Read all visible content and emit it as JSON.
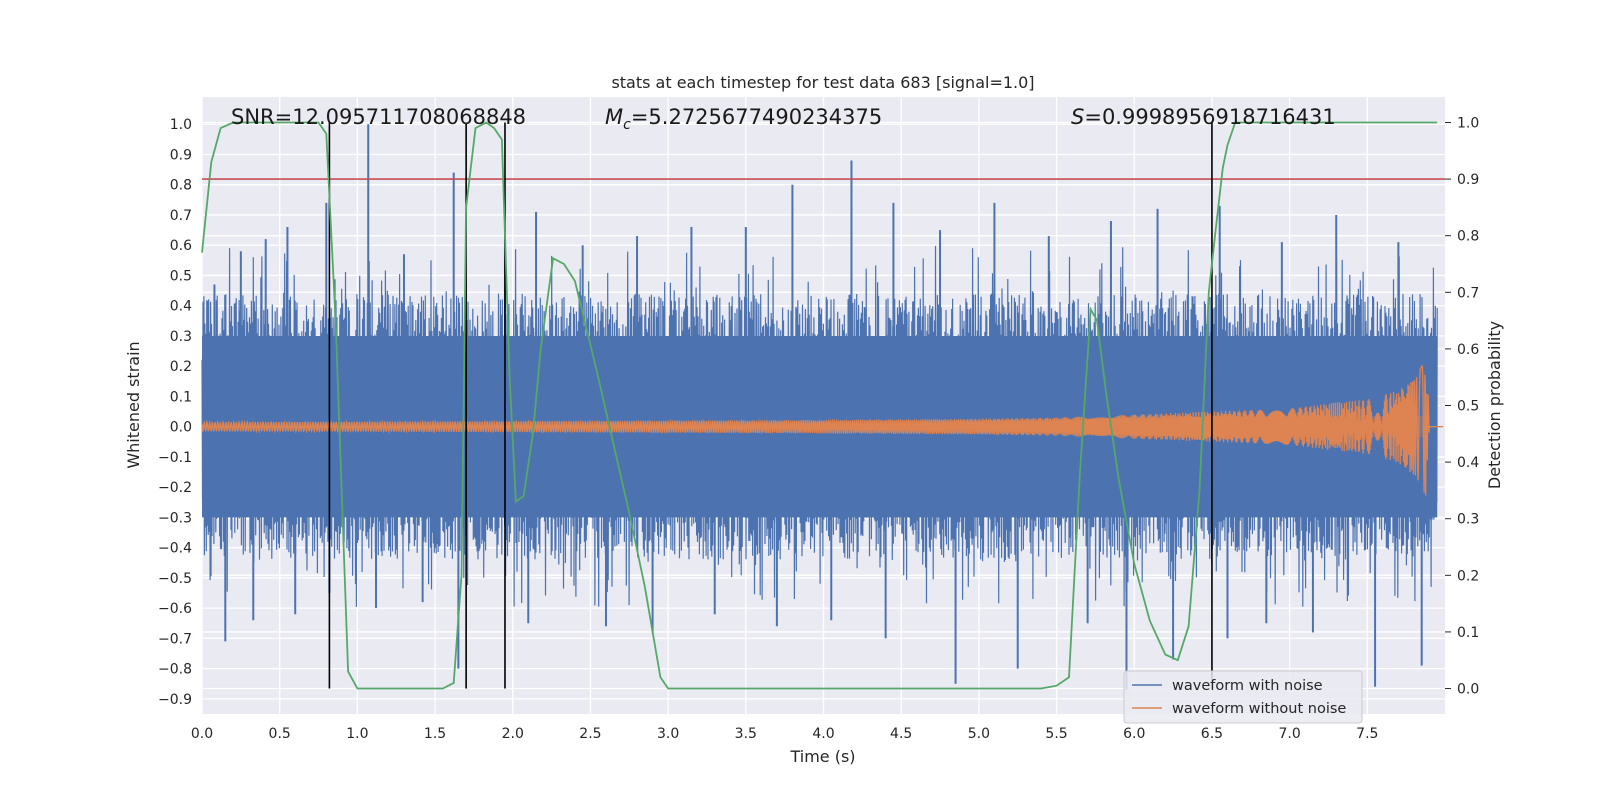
{
  "chart_data": {
    "type": "line",
    "title": "stats at each timestep for test data 683 [signal=1.0]",
    "xlabel": "Time (s)",
    "ylabel": "Whitened strain",
    "y2label": "Detection probability",
    "xlim": [
      0.0,
      8.0
    ],
    "ylim": [
      -0.95,
      1.09
    ],
    "y2lim": [
      -0.045,
      1.045
    ],
    "x_ticks": [
      "0.0",
      "0.5",
      "1.0",
      "1.5",
      "2.0",
      "2.5",
      "3.0",
      "3.5",
      "4.0",
      "4.5",
      "5.0",
      "5.5",
      "6.0",
      "6.5",
      "7.0",
      "7.5"
    ],
    "y_ticks": [
      "1.0",
      "0.9",
      "0.8",
      "0.7",
      "0.6",
      "0.5",
      "0.4",
      "0.3",
      "0.2",
      "0.1",
      "0.0",
      "−0.1",
      "−0.2",
      "−0.3",
      "−0.4",
      "−0.5",
      "−0.6",
      "−0.7",
      "−0.8",
      "−0.9"
    ],
    "y2_ticks": [
      "1.0",
      "0.9",
      "0.8",
      "0.7",
      "0.6",
      "0.5",
      "0.4",
      "0.3",
      "0.2",
      "0.1",
      "0.0"
    ],
    "grid": true,
    "legend_position": "lower-right",
    "annotations": {
      "snr": "SNR=12.095711708068848",
      "mc_symbol": "M",
      "mc_sub": "c",
      "mc_value": "=5.2725677490234375",
      "s_symbol": "S",
      "s_value": "=0.9998956918716431"
    },
    "series": [
      {
        "name": "waveform with noise",
        "color": "#4c72b0",
        "description_values": "noise band approx ±0.35, spikes to ±0.85",
        "peaks_x": [
          0.08,
          0.25,
          0.41,
          0.55,
          0.8,
          1.07,
          1.3,
          1.62,
          1.95,
          2.15,
          2.45,
          2.8,
          3.15,
          3.5,
          3.8,
          4.18,
          4.45,
          4.75,
          5.1,
          5.45,
          5.85,
          6.15,
          6.55,
          6.95,
          7.3,
          7.7
        ],
        "peaks_y": [
          0.47,
          0.58,
          0.62,
          0.66,
          0.74,
          1.0,
          0.57,
          0.84,
          0.62,
          0.71,
          0.6,
          0.63,
          0.66,
          0.66,
          0.8,
          0.88,
          0.74,
          0.65,
          0.74,
          0.63,
          0.68,
          0.72,
          0.73,
          0.61,
          0.7,
          0.61
        ],
        "troughs_x": [
          0.15,
          0.33,
          0.6,
          0.82,
          1.12,
          1.42,
          1.65,
          2.1,
          2.6,
          2.9,
          3.3,
          3.7,
          4.05,
          4.4,
          4.85,
          5.25,
          5.7,
          5.95,
          6.25,
          6.6,
          6.85,
          7.15,
          7.55,
          7.85
        ],
        "troughs_y": [
          -0.71,
          -0.64,
          -0.62,
          -0.55,
          -0.6,
          -0.58,
          -0.8,
          -0.65,
          -0.66,
          -0.68,
          -0.62,
          -0.66,
          -0.64,
          -0.7,
          -0.85,
          -0.8,
          -0.65,
          -0.87,
          -0.77,
          -0.7,
          -0.65,
          -0.68,
          -0.86,
          -0.79
        ]
      },
      {
        "name": "waveform without noise",
        "color": "#dd8452",
        "x": [
          0.0,
          1.0,
          2.0,
          3.0,
          4.0,
          5.0,
          5.5,
          6.0,
          6.5,
          7.0,
          7.3,
          7.5,
          7.7,
          7.8,
          7.85,
          7.88,
          7.9
        ],
        "amplitude": [
          0.015,
          0.016,
          0.018,
          0.02,
          0.022,
          0.026,
          0.03,
          0.04,
          0.05,
          0.06,
          0.08,
          0.09,
          0.12,
          0.16,
          0.2,
          0.24,
          0.0
        ]
      },
      {
        "name": "detection probability",
        "color": "#55a868",
        "axis": "right",
        "x": [
          0.0,
          0.06,
          0.12,
          0.2,
          0.35,
          0.5,
          0.65,
          0.75,
          0.8,
          0.86,
          0.94,
          1.0,
          1.2,
          1.4,
          1.55,
          1.62,
          1.67,
          1.7,
          1.76,
          1.83,
          1.88,
          1.93,
          1.98,
          2.02,
          2.07,
          2.13,
          2.18,
          2.26,
          2.33,
          2.4,
          2.48,
          2.55,
          2.65,
          2.75,
          2.85,
          2.95,
          3.0,
          3.2,
          3.5,
          4.0,
          4.5,
          5.0,
          5.4,
          5.5,
          5.58,
          5.65,
          5.72,
          5.76,
          5.82,
          5.9,
          6.0,
          6.1,
          6.2,
          6.28,
          6.35,
          6.42,
          6.48,
          6.52,
          6.57,
          6.6,
          6.65,
          6.75,
          7.0,
          7.5,
          7.95
        ],
        "y": [
          0.77,
          0.93,
          0.99,
          1.0,
          1.0,
          1.0,
          1.0,
          1.0,
          0.98,
          0.65,
          0.03,
          0.0,
          0.0,
          0.0,
          0.0,
          0.01,
          0.2,
          0.85,
          0.99,
          1.0,
          0.99,
          0.97,
          0.55,
          0.33,
          0.34,
          0.45,
          0.6,
          0.76,
          0.75,
          0.72,
          0.63,
          0.55,
          0.43,
          0.31,
          0.18,
          0.02,
          0.0,
          0.0,
          0.0,
          0.0,
          0.0,
          0.0,
          0.0,
          0.005,
          0.02,
          0.38,
          0.67,
          0.65,
          0.52,
          0.37,
          0.22,
          0.12,
          0.06,
          0.05,
          0.11,
          0.35,
          0.7,
          0.8,
          0.92,
          0.96,
          1.0,
          1.0,
          1.0,
          1.0,
          1.0
        ]
      }
    ],
    "reference_lines": {
      "red_hline_y2": 0.9,
      "red_color": "#c44e52",
      "black_vlines_x": [
        0.82,
        1.7,
        1.95,
        6.5
      ]
    }
  }
}
